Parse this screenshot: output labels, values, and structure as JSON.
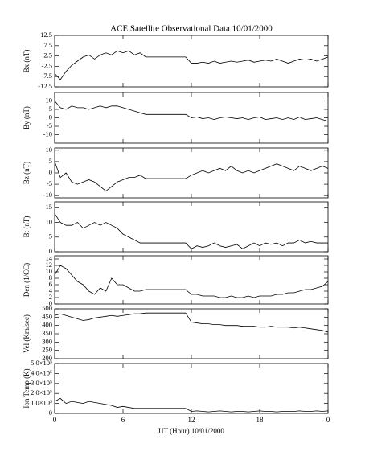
{
  "chart_data": [
    {
      "type": "line",
      "title": "ACE Satellite Observational Data   10/01/2000",
      "ylabel": "Bx (nT)",
      "x": [
        0,
        0.5,
        1,
        1.5,
        2,
        2.5,
        3,
        3.5,
        4,
        4.5,
        5,
        5.5,
        6,
        6.5,
        7,
        7.5,
        8,
        8.5,
        9,
        9.5,
        10,
        10.5,
        11,
        11.5,
        12,
        12.5,
        13,
        13.5,
        14,
        14.5,
        15,
        15.5,
        16,
        16.5,
        17,
        17.5,
        18,
        18.5,
        19,
        19.5,
        20,
        20.5,
        21,
        21.5,
        22,
        22.5,
        23,
        23.5,
        24
      ],
      "series": [
        {
          "name": "Bx",
          "color": "#000000",
          "values": [
            -6,
            -9,
            -5,
            -2,
            0,
            2,
            3,
            1,
            3,
            4,
            3,
            5,
            4,
            5,
            3,
            4,
            2,
            2,
            2,
            2,
            2,
            2,
            2,
            2,
            -1,
            -1,
            -0.5,
            -1,
            0,
            -1,
            -0.5,
            0,
            -0.5,
            0,
            0.5,
            -0.5,
            0,
            0.5,
            0,
            1,
            0,
            -1,
            0,
            1,
            0.5,
            1,
            0,
            1,
            2
          ]
        }
      ],
      "xlim": [
        0,
        24
      ],
      "xticks": [
        0,
        6,
        12,
        18,
        {
          "value": 24,
          "label": "0"
        }
      ],
      "ylim": [
        -12.5,
        12.5
      ],
      "yticks": [
        12.5,
        7.5,
        2.5,
        -2.5,
        -7.5,
        -12.5
      ]
    },
    {
      "type": "line",
      "ylabel": "By (nT)",
      "x": [
        0,
        0.5,
        1,
        1.5,
        2,
        2.5,
        3,
        3.5,
        4,
        4.5,
        5,
        5.5,
        6,
        6.5,
        7,
        7.5,
        8,
        8.5,
        9,
        9.5,
        10,
        10.5,
        11,
        11.5,
        12,
        12.5,
        13,
        13.5,
        14,
        14.5,
        15,
        15.5,
        16,
        16.5,
        17,
        17.5,
        18,
        18.5,
        19,
        19.5,
        20,
        20.5,
        21,
        21.5,
        22,
        22.5,
        23,
        23.5,
        24
      ],
      "series": [
        {
          "name": "By",
          "color": "#000000",
          "values": [
            10,
            6,
            5,
            7,
            6,
            6,
            5,
            6,
            7,
            6,
            7,
            7,
            6,
            5,
            4,
            3,
            2,
            2,
            2,
            2,
            2,
            2,
            2,
            2,
            0,
            0.5,
            -0.5,
            0,
            -1,
            0,
            0.5,
            0,
            -0.5,
            0,
            -1,
            0,
            0.5,
            -1,
            -0.5,
            0,
            -1,
            0,
            -1,
            0.5,
            -1,
            -0.5,
            0,
            -1,
            -2
          ]
        }
      ],
      "xlim": [
        0,
        24
      ],
      "xticks": [
        0,
        6,
        12,
        18,
        {
          "value": 24,
          "label": "0"
        }
      ],
      "ylim": [
        -15,
        15
      ],
      "yticks": [
        10,
        5,
        0,
        -5,
        -10
      ]
    },
    {
      "type": "line",
      "ylabel": "Bz (nT)",
      "x": [
        0,
        0.5,
        1,
        1.5,
        2,
        2.5,
        3,
        3.5,
        4,
        4.5,
        5,
        5.5,
        6,
        6.5,
        7,
        7.5,
        8,
        8.5,
        9,
        9.5,
        10,
        10.5,
        11,
        11.5,
        12,
        12.5,
        13,
        13.5,
        14,
        14.5,
        15,
        15.5,
        16,
        16.5,
        17,
        17.5,
        18,
        18.5,
        19,
        19.5,
        20,
        20.5,
        21,
        21.5,
        22,
        22.5,
        23,
        23.5,
        24
      ],
      "series": [
        {
          "name": "Bz",
          "color": "#000000",
          "values": [
            5,
            -2,
            0,
            -4,
            -5,
            -4,
            -3,
            -4,
            -6,
            -8,
            -6,
            -4,
            -3,
            -2,
            -2,
            -1,
            -2.5,
            -2.5,
            -2.5,
            -2.5,
            -2.5,
            -2.5,
            -2.5,
            -2.5,
            -1,
            0,
            1,
            0,
            1,
            2,
            1,
            3,
            1,
            0,
            1,
            0,
            1,
            2,
            3,
            4,
            3,
            2,
            1,
            3,
            2,
            1,
            2,
            3,
            2
          ]
        }
      ],
      "xlim": [
        0,
        24
      ],
      "xticks": [
        0,
        6,
        12,
        18,
        {
          "value": 24,
          "label": "0"
        }
      ],
      "ylim": [
        -11,
        11
      ],
      "yticks": [
        10,
        5,
        0,
        -5,
        -10
      ]
    },
    {
      "type": "line",
      "ylabel": "Bt (nT)",
      "x": [
        0,
        0.5,
        1,
        1.5,
        2,
        2.5,
        3,
        3.5,
        4,
        4.5,
        5,
        5.5,
        6,
        6.5,
        7,
        7.5,
        8,
        8.5,
        9,
        9.5,
        10,
        10.5,
        11,
        11.5,
        12,
        12.5,
        13,
        13.5,
        14,
        14.5,
        15,
        15.5,
        16,
        16.5,
        17,
        17.5,
        18,
        18.5,
        19,
        19.5,
        20,
        20.5,
        21,
        21.5,
        22,
        22.5,
        23,
        23.5,
        24
      ],
      "series": [
        {
          "name": "Bt",
          "color": "#000000",
          "values": [
            13,
            10,
            9,
            9,
            10,
            8,
            9,
            10,
            9,
            10,
            9,
            8,
            6,
            5,
            4,
            3,
            3,
            3,
            3,
            3,
            3,
            3,
            3,
            3,
            1,
            2,
            1.5,
            2,
            3,
            2,
            1.5,
            2,
            2.5,
            1,
            2,
            3,
            2,
            3,
            2.5,
            3,
            2,
            3,
            3,
            4,
            3,
            3.5,
            3,
            3,
            3
          ]
        }
      ],
      "xlim": [
        0,
        24
      ],
      "xticks": [
        0,
        6,
        12,
        18,
        {
          "value": 24,
          "label": "0"
        }
      ],
      "ylim": [
        0,
        17
      ],
      "yticks": [
        15,
        10,
        5,
        0
      ]
    },
    {
      "type": "line",
      "ylabel": "Den (1/CC)",
      "x": [
        0,
        0.5,
        1,
        1.5,
        2,
        2.5,
        3,
        3.5,
        4,
        4.5,
        5,
        5.5,
        6,
        6.5,
        7,
        7.5,
        8,
        8.5,
        9,
        9.5,
        10,
        10.5,
        11,
        11.5,
        12,
        12.5,
        13,
        13.5,
        14,
        14.5,
        15,
        15.5,
        16,
        16.5,
        17,
        17.5,
        18,
        18.5,
        19,
        19.5,
        20,
        20.5,
        21,
        21.5,
        22,
        22.5,
        23,
        23.5,
        24
      ],
      "series": [
        {
          "name": "Den",
          "color": "#000000",
          "values": [
            9,
            12,
            11,
            9,
            7,
            6,
            4,
            3,
            5,
            4,
            8,
            6,
            6,
            5,
            4,
            4,
            4.5,
            4.5,
            4.5,
            4.5,
            4.5,
            4.5,
            4.5,
            4.5,
            3,
            3,
            2.5,
            2.5,
            2.5,
            2,
            2,
            2.5,
            2,
            2,
            2.5,
            2,
            2.5,
            2.5,
            2.5,
            3,
            3,
            3.5,
            3.5,
            4,
            4.5,
            4.5,
            5,
            5.5,
            7
          ]
        }
      ],
      "xlim": [
        0,
        24
      ],
      "xticks": [
        0,
        6,
        12,
        18,
        {
          "value": 24,
          "label": "0"
        }
      ],
      "ylim": [
        0,
        15
      ],
      "yticks": [
        14,
        12,
        10,
        8,
        6,
        4,
        2,
        0
      ]
    },
    {
      "type": "line",
      "ylabel": "Vel (Km/sec)",
      "x": [
        0,
        0.5,
        1,
        1.5,
        2,
        2.5,
        3,
        3.5,
        4,
        4.5,
        5,
        5.5,
        6,
        6.5,
        7,
        7.5,
        8,
        8.5,
        9,
        9.5,
        10,
        10.5,
        11,
        11.5,
        12,
        12.5,
        13,
        13.5,
        14,
        14.5,
        15,
        15.5,
        16,
        16.5,
        17,
        17.5,
        18,
        18.5,
        19,
        19.5,
        20,
        20.5,
        21,
        21.5,
        22,
        22.5,
        23,
        23.5,
        24
      ],
      "series": [
        {
          "name": "Vel",
          "color": "#000000",
          "values": [
            460,
            470,
            460,
            450,
            440,
            430,
            435,
            445,
            450,
            455,
            460,
            455,
            460,
            465,
            470,
            470,
            475,
            475,
            475,
            475,
            475,
            475,
            475,
            475,
            420,
            415,
            410,
            410,
            405,
            405,
            400,
            400,
            400,
            395,
            395,
            395,
            390,
            390,
            395,
            390,
            390,
            390,
            385,
            390,
            385,
            380,
            375,
            370,
            360
          ]
        }
      ],
      "xlim": [
        0,
        24
      ],
      "xticks": [
        0,
        6,
        12,
        18,
        {
          "value": 24,
          "label": "0"
        }
      ],
      "ylim": [
        200,
        500
      ],
      "yticks": [
        500,
        450,
        400,
        350,
        300,
        250,
        200
      ]
    },
    {
      "type": "line",
      "ylabel": "Ion Temp (K)",
      "xlabel": "UT (Hour)   10/01/2000",
      "x": [
        0,
        0.5,
        1,
        1.5,
        2,
        2.5,
        3,
        3.5,
        4,
        4.5,
        5,
        5.5,
        6,
        6.5,
        7,
        7.5,
        8,
        8.5,
        9,
        9.5,
        10,
        10.5,
        11,
        11.5,
        12,
        12.5,
        13,
        13.5,
        14,
        14.5,
        15,
        15.5,
        16,
        16.5,
        17,
        17.5,
        18,
        18.5,
        19,
        19.5,
        20,
        20.5,
        21,
        21.5,
        22,
        22.5,
        23,
        23.5,
        24
      ],
      "series": [
        {
          "name": "Ion Temp",
          "color": "#000000",
          "values": [
            120000,
            150000,
            100000,
            120000,
            110000,
            100000,
            120000,
            110000,
            100000,
            90000,
            80000,
            60000,
            70000,
            60000,
            50000,
            50000,
            50000,
            50000,
            50000,
            50000,
            50000,
            50000,
            50000,
            50000,
            20000,
            25000,
            20000,
            15000,
            20000,
            25000,
            20000,
            15000,
            20000,
            20000,
            15000,
            20000,
            25000,
            20000,
            20000,
            15000,
            20000,
            20000,
            20000,
            25000,
            20000,
            20000,
            25000,
            20000,
            25000
          ]
        }
      ],
      "xlim": [
        0,
        24
      ],
      "xticks": [
        0,
        6,
        12,
        18,
        {
          "value": 24,
          "label": "0"
        }
      ],
      "ylim": [
        0,
        500000
      ],
      "yticks": [
        {
          "value": 500000,
          "label": "5.0×10⁵"
        },
        {
          "value": 400000,
          "label": "4.0×10⁵"
        },
        {
          "value": 300000,
          "label": "3.0×10⁵"
        },
        {
          "value": 200000,
          "label": "2.0×10⁵"
        },
        {
          "value": 100000,
          "label": "1.0×10⁵"
        },
        0
      ]
    }
  ]
}
